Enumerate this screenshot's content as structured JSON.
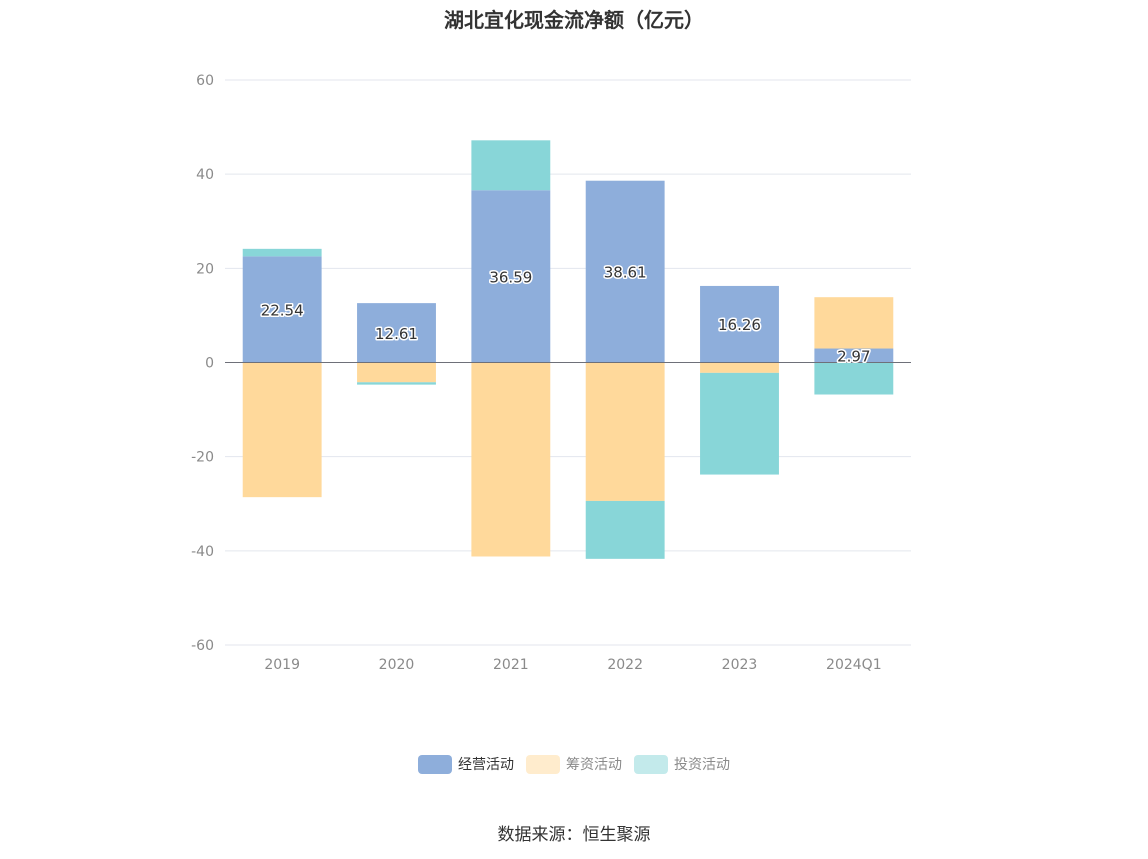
{
  "chart_data": {
    "type": "bar",
    "stacked": true,
    "title": "湖北宜化现金流净额（亿元）",
    "categories": [
      "2019",
      "2020",
      "2021",
      "2022",
      "2023",
      "2024Q1"
    ],
    "series": [
      {
        "name": "经营活动",
        "color": "#8eaedb",
        "values": [
          22.54,
          12.61,
          36.59,
          38.61,
          16.26,
          2.97
        ],
        "labels": [
          "22.54",
          "12.61",
          "36.59",
          "38.61",
          "16.26",
          "2.97"
        ]
      },
      {
        "name": "筹资活动",
        "color": "#ffd99b",
        "values": [
          -28.6,
          -4.2,
          -41.2,
          -29.4,
          -2.2,
          10.9
        ]
      },
      {
        "name": "投资活动",
        "color": "#88d6d8",
        "values": [
          1.6,
          -0.5,
          10.6,
          -12.3,
          -21.6,
          -6.8
        ]
      }
    ],
    "ylim": [
      -60,
      60
    ],
    "yticks": [
      "60",
      "40",
      "20",
      "0",
      "-20",
      "-40",
      "-60"
    ],
    "grid": true,
    "legend_position": "bottom",
    "source": "数据来源：恒生聚源"
  }
}
